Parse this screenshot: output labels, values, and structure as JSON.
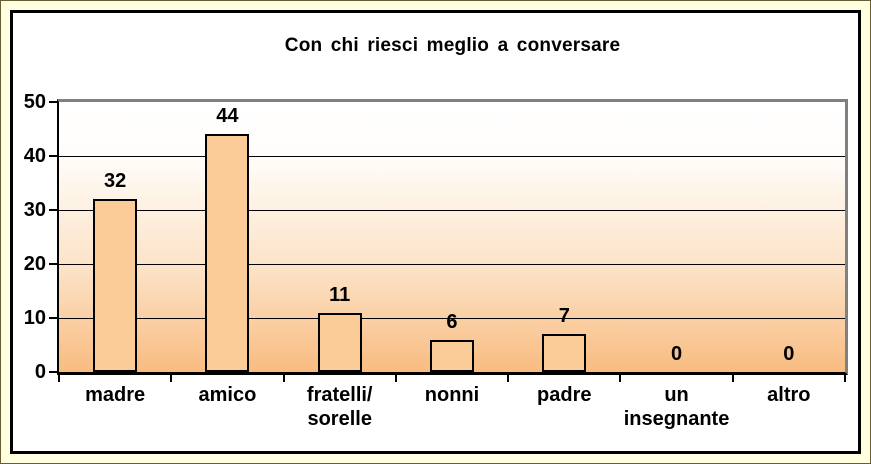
{
  "frame": {
    "outer_background": "#FFFFE0",
    "chart_background": "#FFFFFF",
    "edge_border_color": "#6b5d33"
  },
  "chart_data": {
    "type": "bar",
    "title": "Con chi riesci meglio a conversare",
    "categories": [
      "madre",
      "amico",
      "fratelli/\nsorelle",
      "nonni",
      "padre",
      "un\ninsegnante",
      "altro"
    ],
    "values": [
      32,
      44,
      11,
      6,
      7,
      0,
      0
    ],
    "value_labels": [
      "32",
      "44",
      "11",
      "6",
      "7",
      "0",
      "0"
    ],
    "xlabel": "",
    "ylabel": "",
    "ylim": [
      0,
      50
    ],
    "ytick_step": 10,
    "ytick_labels": [
      "0",
      "10",
      "20",
      "30",
      "40",
      "50"
    ],
    "grid": true,
    "legend": false,
    "colors": {
      "bar_fill": "#FBCB98",
      "bar_border": "#000000",
      "plot_gradient_top": "#FFFFFF",
      "plot_gradient_bottom": "#F8BC81",
      "axis_frame_gray": "#808080",
      "gridline": "#000000",
      "text": "#000000"
    }
  }
}
